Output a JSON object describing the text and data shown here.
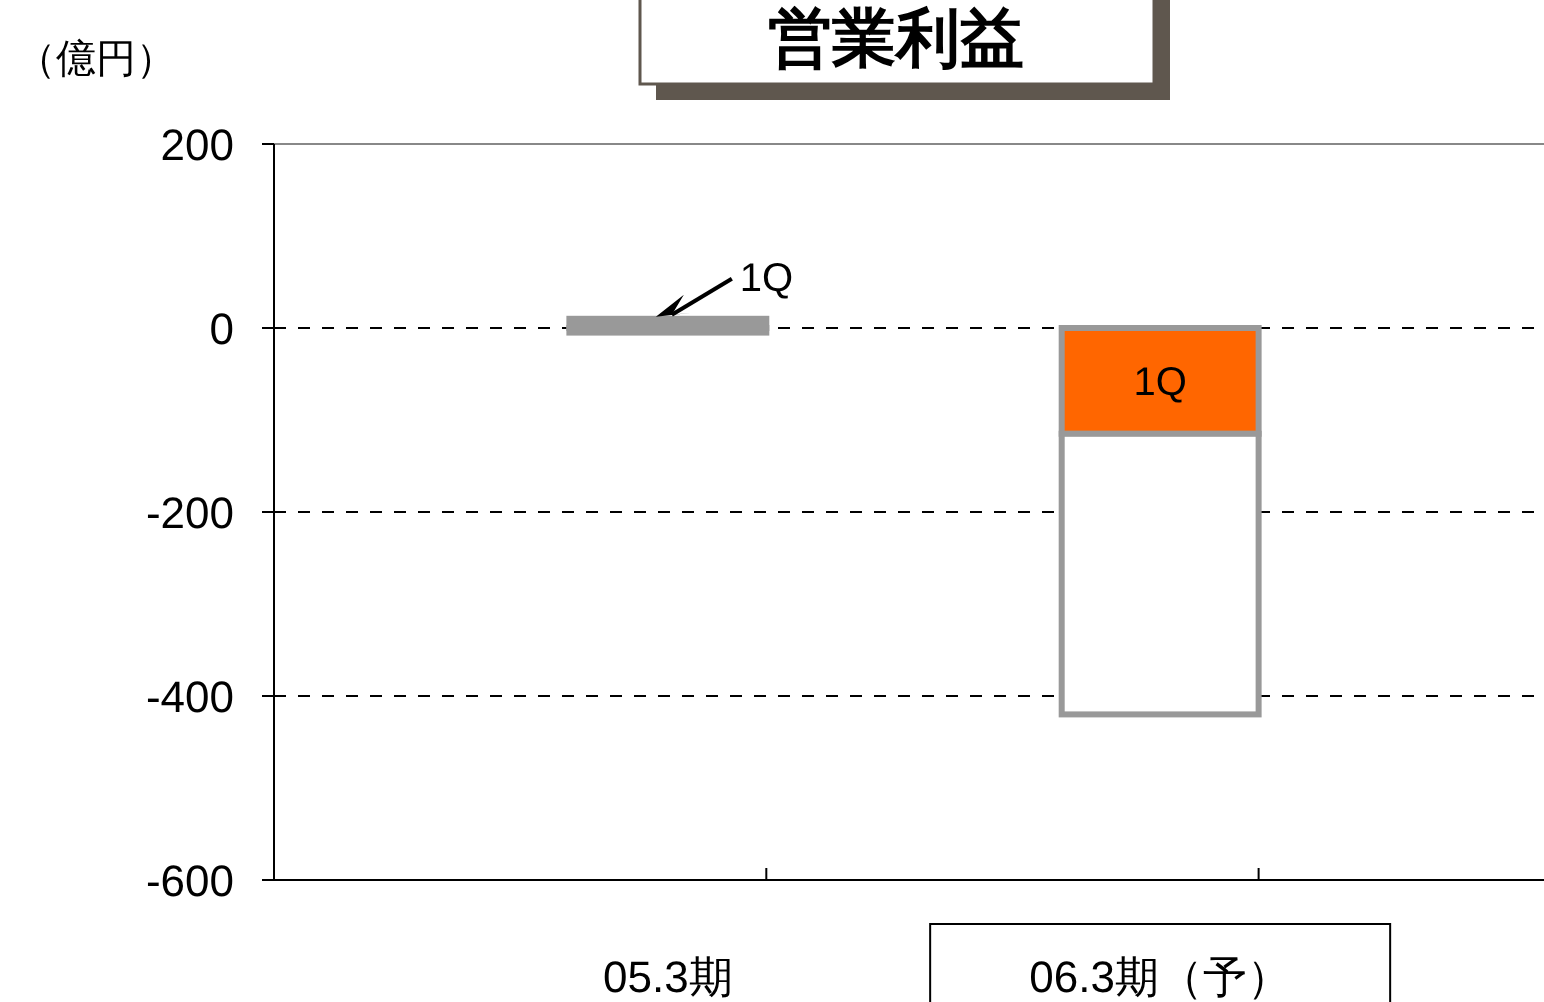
{
  "chart_data": {
    "type": "bar",
    "title": "営業利益",
    "ylabel": "（億円）",
    "categories": [
      "05.3期",
      "06.3期（予）"
    ],
    "series": [
      {
        "name": "1Q",
        "colors": [
          "#999999",
          "#ff6600"
        ],
        "values": [
          10,
          -115
        ]
      },
      {
        "color": "#ffffff",
        "values": [
          -5,
          -305
        ]
      }
    ],
    "stacked": true,
    "ylim": [
      -600,
      200
    ],
    "yticks": [
      -600,
      -400,
      -200,
      0,
      200
    ],
    "grid": "y",
    "line_style": "dashed"
  }
}
